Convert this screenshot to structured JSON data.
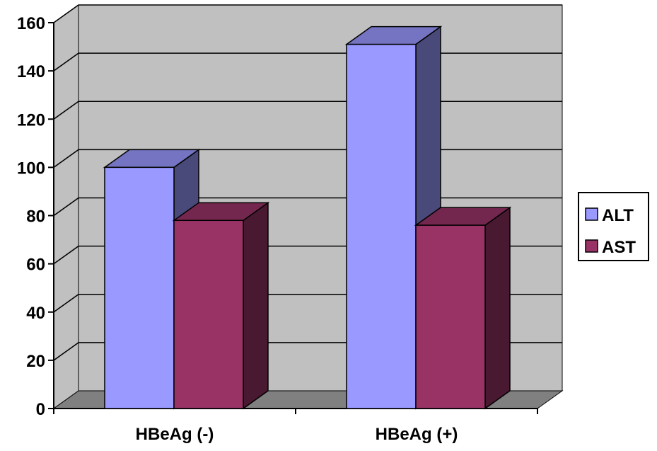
{
  "chart_data": {
    "type": "bar",
    "style": "3d-clustered-column",
    "categories": [
      "HBeAg (-)",
      "HBeAg (+)"
    ],
    "series": [
      {
        "name": "ALT",
        "values": [
          100,
          151
        ],
        "color": "#9999ff"
      },
      {
        "name": "AST",
        "values": [
          78,
          76
        ],
        "color": "#993366"
      }
    ],
    "title": "",
    "xlabel": "",
    "ylabel": "",
    "ylim": [
      0,
      160
    ],
    "yticks": [
      0,
      20,
      40,
      60,
      80,
      100,
      120,
      140,
      160
    ],
    "grid": true,
    "legend_position": "right",
    "wall_color": "#c0c0c0",
    "floor_color": "#808080"
  }
}
